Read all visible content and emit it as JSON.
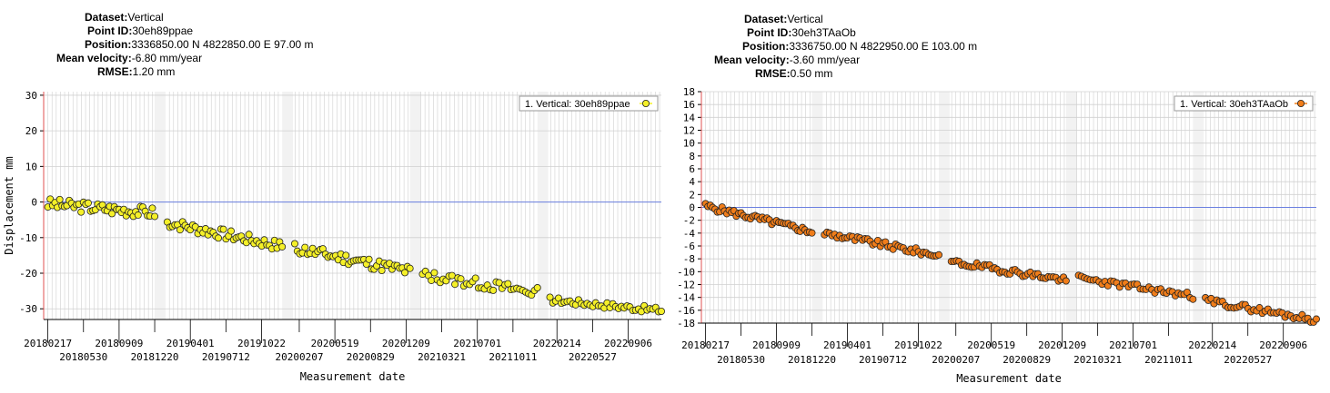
{
  "colors": {
    "left_marker": "#f5f028",
    "right_marker": "#f07d1a",
    "marker_stroke": "#222222",
    "zero_line": "#6a7fe0",
    "grid": "#d0d0d0",
    "gap": "#f2f2f2"
  },
  "panels": [
    {
      "info": {
        "dataset_label": "Dataset:",
        "dataset": "Vertical",
        "point_label": "Point ID:",
        "point": "30eh89ppae",
        "position_label": "Position:",
        "position": "3336850.00 N 4822850.00 E 97.00 m",
        "velocity_label": "Mean velocity:",
        "velocity": "-6.80 mm/year",
        "rmse_label": "RMSE:",
        "rmse": "1.20 mm"
      },
      "chart_data": {
        "type": "scatter",
        "xlabel": "Measurement date",
        "ylabel": "Displacement mm",
        "ylim": [
          -33,
          31
        ],
        "yticks": [
          30,
          20,
          10,
          0,
          -10,
          -20,
          -30
        ],
        "xrange": [
          "2018-02-05",
          "2022-12-10"
        ],
        "legend": {
          "text": "1. Vertical: 30eh89ppae",
          "placement": "top-right"
        },
        "grid": true,
        "gaps": [
          [
            "2018-12-20",
            "2019-01-20"
          ],
          [
            "2019-12-20",
            "2020-01-20"
          ],
          [
            "2020-12-20",
            "2021-01-20"
          ],
          [
            "2021-12-20",
            "2022-01-20"
          ]
        ],
        "xticks_top": [
          "20180217",
          "20180909",
          "20190401",
          "20191022",
          "20200519",
          "20201209",
          "20210701",
          "20220214",
          "20220906"
        ],
        "xticks_bottom": [
          "20180530",
          "20181220",
          "20190712",
          "20200207",
          "20200829",
          "20210321",
          "20211011",
          "20220527"
        ],
        "series": [
          {
            "marker_color": "#f5f028",
            "segments": [
              {
                "start": "2018-02-17",
                "end": "2018-12-20",
                "y0": -0.5,
                "y1": -3.0,
                "n": 46,
                "amp": 1.6,
                "seed": 3
              },
              {
                "start": "2019-01-25",
                "end": "2019-12-20",
                "y0": -5.8,
                "y1": -12.5,
                "n": 46,
                "amp": 1.5,
                "seed": 7
              },
              {
                "start": "2020-01-25",
                "end": "2020-12-20",
                "y0": -13.0,
                "y1": -19.5,
                "n": 46,
                "amp": 1.6,
                "seed": 11
              },
              {
                "start": "2021-01-25",
                "end": "2021-12-20",
                "y0": -20.5,
                "y1": -25.5,
                "n": 40,
                "amp": 1.5,
                "seed": 13
              },
              {
                "start": "2022-01-25",
                "end": "2022-12-10",
                "y0": -27.5,
                "y1": -30.5,
                "n": 40,
                "amp": 0.9,
                "seed": 17
              }
            ]
          }
        ]
      }
    },
    {
      "info": {
        "dataset_label": "Dataset:",
        "dataset": "Vertical",
        "point_label": "Point ID:",
        "point": "30eh3TAaOb",
        "position_label": "Position:",
        "position": "3336750.00 N 4822950.00 E 103.00 m",
        "velocity_label": "Mean velocity:",
        "velocity": "-3.60 mm/year",
        "rmse_label": "RMSE:",
        "rmse": "0.50 mm"
      },
      "chart_data": {
        "type": "scatter",
        "xlabel": "Measurement date",
        "ylabel": "",
        "ylim": [
          -18,
          18
        ],
        "yticks": [
          18,
          16,
          14,
          12,
          10,
          8,
          6,
          4,
          2,
          0,
          -2,
          -4,
          -6,
          -8,
          -10,
          -12,
          -14,
          -16,
          -18
        ],
        "xrange": [
          "2018-02-05",
          "2022-12-10"
        ],
        "legend": {
          "text": "1. Vertical: 30eh3TAaOb",
          "placement": "top-right"
        },
        "grid": true,
        "gaps": [
          [
            "2018-12-20",
            "2019-01-20"
          ],
          [
            "2019-12-20",
            "2020-01-20"
          ],
          [
            "2020-12-20",
            "2021-01-20"
          ],
          [
            "2021-12-20",
            "2022-01-20"
          ]
        ],
        "xticks_top": [
          "20180217",
          "20180909",
          "20190401",
          "20191022",
          "20200519",
          "20201209",
          "20210701",
          "20220214",
          "20220906"
        ],
        "xticks_bottom": [
          "20180530",
          "20181220",
          "20190712",
          "20200207",
          "20200829",
          "20210321",
          "20211011",
          "20220527"
        ],
        "series": [
          {
            "marker_color": "#f07d1a",
            "segments": [
              {
                "start": "2018-02-17",
                "end": "2018-12-20",
                "y0": 0.2,
                "y1": -3.8,
                "n": 46,
                "amp": 0.5,
                "seed": 5
              },
              {
                "start": "2019-01-25",
                "end": "2019-12-20",
                "y0": -4.0,
                "y1": -7.5,
                "n": 46,
                "amp": 0.5,
                "seed": 9
              },
              {
                "start": "2020-01-25",
                "end": "2020-12-20",
                "y0": -8.5,
                "y1": -11.3,
                "n": 46,
                "amp": 0.5,
                "seed": 19
              },
              {
                "start": "2021-01-25",
                "end": "2021-12-20",
                "y0": -11.0,
                "y1": -13.8,
                "n": 40,
                "amp": 0.5,
                "seed": 23
              },
              {
                "start": "2022-01-25",
                "end": "2022-12-10",
                "y0": -14.5,
                "y1": -17.5,
                "n": 40,
                "amp": 0.5,
                "seed": 29
              }
            ]
          }
        ]
      }
    }
  ]
}
